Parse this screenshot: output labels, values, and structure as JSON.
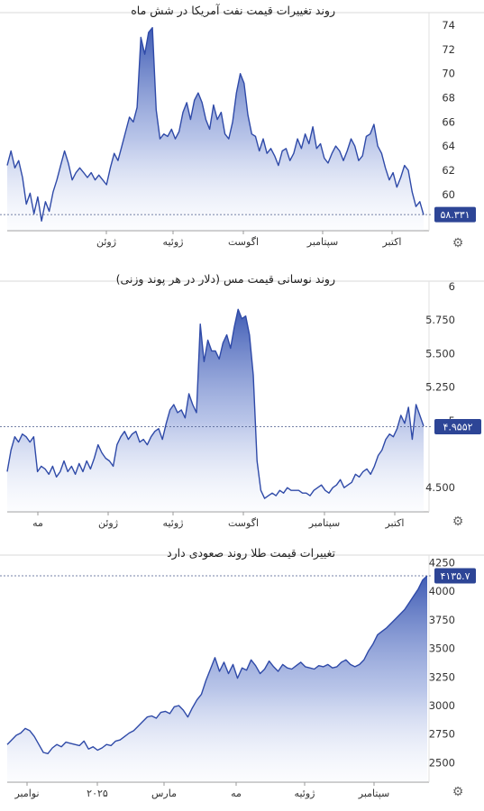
{
  "chart_data": [
    {
      "type": "area",
      "title": "روند تغییرات قیمت نفت آمریکا در شش ماه",
      "y_ticks": [
        "74",
        "72",
        "70",
        "68",
        "66",
        "64",
        "62",
        "60"
      ],
      "ylim": [
        57,
        74.6
      ],
      "x_tick_labels": [
        "ژوئن",
        "ژوئیه",
        "اگوست",
        "سپتامبر",
        "اکتبر"
      ],
      "last_value_label": "۵۸.۳۳۱",
      "last_value": 58.331,
      "series": [
        {
          "values": [
            62.4,
            63.6,
            62.2,
            62.8,
            61.4,
            59.2,
            60.1,
            58.4,
            59.8,
            57.8,
            59.4,
            58.6,
            60.2,
            61.2,
            62.4,
            63.6,
            62.6,
            61.2,
            61.8,
            62.2,
            61.8,
            61.4,
            61.8,
            61.2,
            61.6,
            61.2,
            60.8,
            62.2,
            63.4,
            62.8,
            64.0,
            65.2,
            66.4,
            66.0,
            67.2,
            73.0,
            71.6,
            73.4,
            73.8,
            67.0,
            64.6,
            65.0,
            64.8,
            65.4,
            64.6,
            65.2,
            66.8,
            67.6,
            66.2,
            67.8,
            68.4,
            67.6,
            66.2,
            65.4,
            67.4,
            66.2,
            66.8,
            65.0,
            64.6,
            66.0,
            68.4,
            70.0,
            69.2,
            66.6,
            65.0,
            64.8,
            63.6,
            64.6,
            63.4,
            63.8,
            63.2,
            62.4,
            63.6,
            63.8,
            62.8,
            63.4,
            64.6,
            63.8,
            65.0,
            64.2,
            65.6,
            63.8,
            64.2,
            63.0,
            62.6,
            63.4,
            64.0,
            63.6,
            62.8,
            63.6,
            64.6,
            64.0,
            62.8,
            63.2,
            64.8,
            65.0,
            65.8,
            64.0,
            63.4,
            62.2,
            61.2,
            61.8,
            60.6,
            61.4,
            62.4,
            62.0,
            60.2,
            59.0,
            59.4,
            58.3
          ]
        }
      ]
    },
    {
      "type": "area",
      "title": "روند نوسانی قیمت مس (دلار در هر پوند وزنی)",
      "y_ticks": [
        "6",
        "5.750",
        "5.500",
        "5.250",
        "5",
        "4.500"
      ],
      "ylim": [
        4.32,
        6.0
      ],
      "x_tick_labels": [
        "مه",
        "ژوئن",
        "ژوئیه",
        "اگوست",
        "سپتامبر",
        "اکتبر"
      ],
      "last_value_label": "۴.۹۵۵۲",
      "last_value": 4.9552,
      "series": [
        {
          "values": [
            4.62,
            4.78,
            4.88,
            4.84,
            4.9,
            4.88,
            4.84,
            4.88,
            4.62,
            4.66,
            4.64,
            4.6,
            4.66,
            4.58,
            4.62,
            4.7,
            4.62,
            4.66,
            4.6,
            4.68,
            4.62,
            4.7,
            4.64,
            4.72,
            4.82,
            4.76,
            4.72,
            4.7,
            4.66,
            4.82,
            4.88,
            4.92,
            4.86,
            4.9,
            4.92,
            4.84,
            4.86,
            4.82,
            4.88,
            4.92,
            4.94,
            4.86,
            4.98,
            5.08,
            5.12,
            5.06,
            5.08,
            5.02,
            5.2,
            5.12,
            5.06,
            5.72,
            5.44,
            5.6,
            5.52,
            5.52,
            5.46,
            5.58,
            5.64,
            5.54,
            5.7,
            5.83,
            5.76,
            5.78,
            5.64,
            5.34,
            4.7,
            4.48,
            4.42,
            4.44,
            4.46,
            4.44,
            4.48,
            4.46,
            4.5,
            4.48,
            4.48,
            4.48,
            4.46,
            4.46,
            4.44,
            4.48,
            4.5,
            4.52,
            4.48,
            4.46,
            4.5,
            4.52,
            4.56,
            4.5,
            4.52,
            4.54,
            4.6,
            4.58,
            4.62,
            4.64,
            4.6,
            4.66,
            4.74,
            4.78,
            4.86,
            4.9,
            4.88,
            4.94,
            5.04,
            4.98,
            5.1,
            4.86,
            5.12,
            5.04,
            4.96
          ]
        }
      ]
    },
    {
      "type": "area",
      "title": "تغییرات قیمت طلا روند صعودی دارد",
      "y_ticks": [
        "4250",
        "4000",
        "3750",
        "3500",
        "3250",
        "3000",
        "2750",
        "2500"
      ],
      "ylim": [
        2330,
        4270
      ],
      "x_tick_labels": [
        "نوامبر",
        "۲۰۲۵",
        "مارس",
        "مه",
        "ژوئیه",
        "سپتامبر"
      ],
      "last_value_label": "۴۱۳۵.۷",
      "last_value": 4135.7,
      "series": [
        {
          "values": [
            2660,
            2700,
            2740,
            2760,
            2800,
            2780,
            2730,
            2660,
            2590,
            2580,
            2630,
            2660,
            2640,
            2680,
            2670,
            2660,
            2650,
            2690,
            2620,
            2640,
            2610,
            2630,
            2660,
            2650,
            2690,
            2700,
            2730,
            2760,
            2780,
            2820,
            2860,
            2900,
            2910,
            2890,
            2940,
            2950,
            2930,
            2990,
            3000,
            2960,
            2900,
            2980,
            3050,
            3100,
            3220,
            3320,
            3420,
            3300,
            3380,
            3280,
            3360,
            3240,
            3330,
            3310,
            3400,
            3350,
            3280,
            3320,
            3390,
            3340,
            3300,
            3360,
            3330,
            3320,
            3350,
            3380,
            3340,
            3330,
            3320,
            3350,
            3340,
            3360,
            3330,
            3340,
            3380,
            3400,
            3360,
            3340,
            3360,
            3400,
            3480,
            3540,
            3620,
            3650,
            3680,
            3720,
            3760,
            3800,
            3840,
            3900,
            3960,
            4020,
            4100,
            4136
          ]
        }
      ]
    }
  ]
}
